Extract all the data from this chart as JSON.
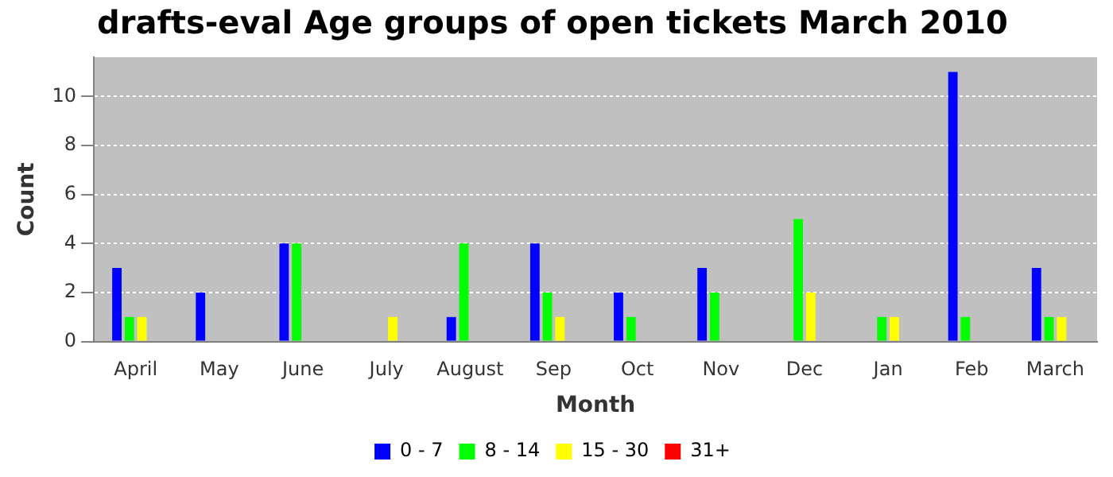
{
  "chart_data": {
    "type": "bar",
    "title": "drafts-eval Age groups of open tickets March 2010",
    "xlabel": "Month",
    "ylabel": "Count",
    "categories": [
      "April",
      "May",
      "June",
      "July",
      "August",
      "Sep",
      "Oct",
      "Nov",
      "Dec",
      "Jan",
      "Feb",
      "March"
    ],
    "series": [
      {
        "name": "0 - 7",
        "color": "#0000ff",
        "values": [
          3,
          2,
          4,
          0,
          1,
          4,
          2,
          3,
          0,
          0,
          11,
          3
        ]
      },
      {
        "name": "8 - 14",
        "color": "#00ff00",
        "values": [
          1,
          0,
          4,
          0,
          4,
          2,
          1,
          2,
          5,
          1,
          1,
          1
        ]
      },
      {
        "name": "15 - 30",
        "color": "#ffff00",
        "values": [
          1,
          0,
          0,
          1,
          0,
          1,
          0,
          0,
          2,
          1,
          0,
          1
        ]
      },
      {
        "name": "31+",
        "color": "#ff0000",
        "values": [
          0,
          0,
          0,
          0,
          0,
          0,
          0,
          0,
          0,
          0,
          0,
          0
        ]
      }
    ],
    "ylim": [
      0,
      11.6
    ],
    "yticks": [
      0,
      2,
      4,
      6,
      8,
      10
    ],
    "grid": "y",
    "legend": "bottom"
  }
}
